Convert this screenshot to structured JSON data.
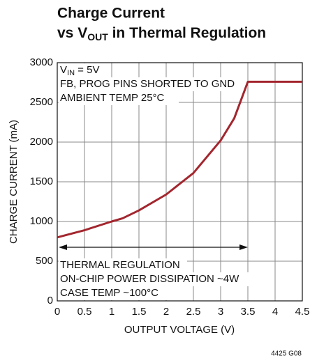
{
  "chart_data": {
    "type": "line",
    "title": {
      "line1": "Charge Current",
      "line2_pre": "vs V",
      "line2_sub": "OUT",
      "line2_post": " in Thermal Regulation"
    },
    "xlabel": "OUTPUT VOLTAGE (V)",
    "ylabel": "CHARGE CURRENT (mA)",
    "annotations": {
      "vin_pre": "V",
      "vin_sub": "IN",
      "vin_post": " = 5V",
      "pins": "FB, PROG PINS SHORTED TO GND",
      "ambient": "AMBIENT TEMP 25°C",
      "reg": "THERMAL REGULATION",
      "power": "ON-CHIP POWER DISSIPATION ~4W",
      "case": "CASE TEMP ~100°C"
    },
    "footnote": "4425 G08",
    "x": [
      0,
      0.5,
      1,
      1.2,
      1.5,
      2,
      2.5,
      3,
      3.25,
      3.5,
      4.5
    ],
    "series": [
      {
        "name": "Charge Current",
        "color": "#a3262e",
        "values": [
          800,
          890,
          1000,
          1040,
          1140,
          1340,
          1610,
          2020,
          2300,
          2760,
          2760
        ]
      }
    ],
    "xlim": [
      0,
      4.5
    ],
    "xticks": [
      0,
      0.5,
      1,
      1.5,
      2,
      2.5,
      3,
      3.5,
      4,
      4.5
    ],
    "ylim": [
      0,
      3000
    ],
    "yticks": [
      0,
      500,
      1000,
      1500,
      2000,
      2500,
      3000
    ],
    "grid": true
  }
}
